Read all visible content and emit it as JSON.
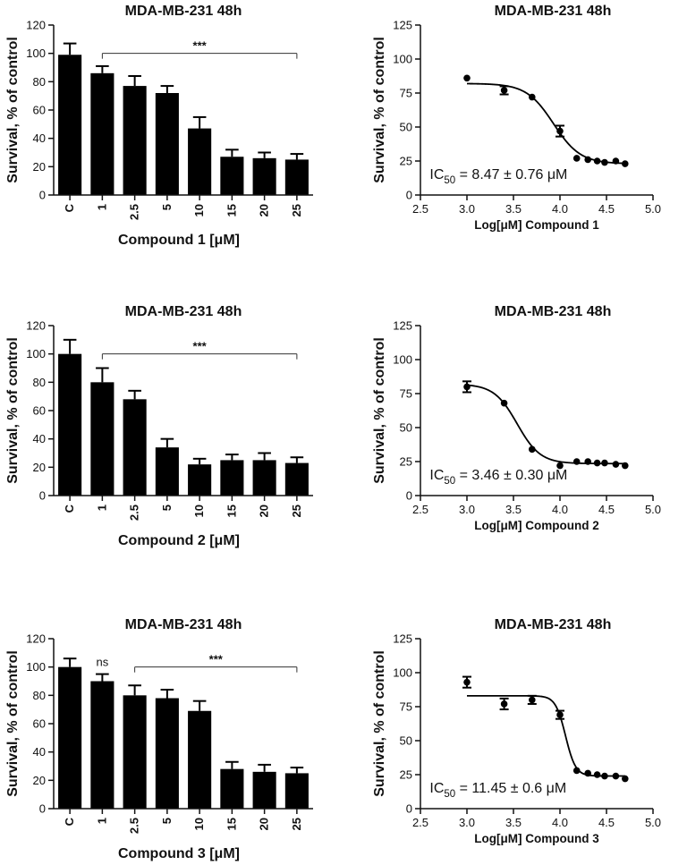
{
  "chart_data": [
    {
      "id": "bar1",
      "type": "bar",
      "title": "MDA-MB-231 48h",
      "ylabel": "Survival, % of control",
      "xlabel": "Compound 1 [μM]",
      "categories": [
        "C",
        "1",
        "2.5",
        "5",
        "10",
        "15",
        "20",
        "25"
      ],
      "values": [
        99,
        86,
        77,
        72,
        47,
        27,
        26,
        25
      ],
      "errors": [
        8,
        5,
        7,
        5,
        8,
        5,
        4,
        4
      ],
      "ylim": [
        0,
        120
      ],
      "yticks": [
        "0",
        "20",
        "40",
        "60",
        "80",
        "100",
        "120"
      ],
      "significance": [
        {
          "label": "***",
          "from": "1",
          "to": "25"
        }
      ]
    },
    {
      "id": "curve1",
      "type": "scatter",
      "title": "MDA-MB-231 48h",
      "ylabel": "Survival, % of control",
      "xlabel": "Log[μM] Compound 1",
      "x": [
        3.0,
        3.4,
        3.7,
        4.0,
        4.18,
        4.3,
        4.4,
        4.48,
        4.6,
        4.7
      ],
      "y": [
        86,
        77,
        72,
        47,
        27,
        26,
        25,
        24,
        25,
        23
      ],
      "errors": [
        0,
        3,
        0,
        4,
        0,
        0,
        0,
        0,
        0,
        0
      ],
      "fit": {
        "top": 82,
        "bottom": 23,
        "logIC50": 3.93,
        "hill": 3.0
      },
      "xlim": [
        2.5,
        5.0
      ],
      "ylim": [
        0,
        125
      ],
      "xticks": [
        "2.5",
        "3.0",
        "3.5",
        "4.0",
        "4.5",
        "5.0"
      ],
      "yticks": [
        "0",
        "25",
        "50",
        "75",
        "100",
        "125"
      ],
      "annotation": {
        "prefix": "IC",
        "sub": "50",
        "text": " = 8.47 ± 0.76 μM"
      }
    },
    {
      "id": "bar2",
      "type": "bar",
      "title": "MDA-MB-231 48h",
      "ylabel": "Survival, % of control",
      "xlabel": "Compound 2 [μM]",
      "categories": [
        "C",
        "1",
        "2.5",
        "5",
        "10",
        "15",
        "20",
        "25"
      ],
      "values": [
        100,
        80,
        68,
        34,
        22,
        25,
        25,
        23
      ],
      "errors": [
        10,
        10,
        6,
        6,
        4,
        4,
        5,
        4
      ],
      "ylim": [
        0,
        120
      ],
      "yticks": [
        "0",
        "20",
        "40",
        "60",
        "80",
        "100",
        "120"
      ],
      "significance": [
        {
          "label": "***",
          "from": "1",
          "to": "25"
        }
      ]
    },
    {
      "id": "curve2",
      "type": "scatter",
      "title": "MDA-MB-231 48h",
      "ylabel": "Survival, % of control",
      "xlabel": "Log[μM] Compound 2",
      "x": [
        3.0,
        3.4,
        3.7,
        4.0,
        4.18,
        4.3,
        4.4,
        4.48,
        4.6,
        4.7
      ],
      "y": [
        80,
        68,
        34,
        22,
        25,
        25,
        24,
        24,
        23,
        22
      ],
      "errors": [
        4,
        0,
        0,
        0,
        0,
        0,
        0,
        0,
        0,
        0
      ],
      "fit": {
        "top": 82,
        "bottom": 23.5,
        "logIC50": 3.54,
        "hill": 3.5
      },
      "xlim": [
        2.5,
        5.0
      ],
      "ylim": [
        0,
        125
      ],
      "xticks": [
        "2.5",
        "3.0",
        "3.5",
        "4.0",
        "4.5",
        "5.0"
      ],
      "yticks": [
        "0",
        "25",
        "50",
        "75",
        "100",
        "125"
      ],
      "annotation": {
        "prefix": "IC",
        "sub": "50",
        "text": " = 3.46 ± 0.30 μM"
      }
    },
    {
      "id": "bar3",
      "type": "bar",
      "title": "MDA-MB-231 48h",
      "ylabel": "Survival, % of control",
      "xlabel": "Compound 3 [μM]",
      "categories": [
        "C",
        "1",
        "2.5",
        "5",
        "10",
        "15",
        "20",
        "25"
      ],
      "values": [
        100,
        90,
        80,
        78,
        69,
        28,
        26,
        25
      ],
      "errors": [
        6,
        5,
        7,
        6,
        7,
        5,
        5,
        4
      ],
      "ylim": [
        0,
        120
      ],
      "yticks": [
        "0",
        "20",
        "40",
        "60",
        "80",
        "100",
        "120"
      ],
      "significance": [
        {
          "label": "***",
          "from": "2.5",
          "to": "25"
        }
      ],
      "ns_label": {
        "label": "ns",
        "at": "1"
      }
    },
    {
      "id": "curve3",
      "type": "scatter",
      "title": "MDA-MB-231 48h",
      "ylabel": "Survival, % of control",
      "xlabel": "Log[μM] Compound 3",
      "x": [
        3.0,
        3.4,
        3.7,
        4.0,
        4.18,
        4.3,
        4.4,
        4.48,
        4.6,
        4.7
      ],
      "y": [
        93,
        77,
        80,
        69,
        28,
        26,
        25,
        24,
        24,
        22
      ],
      "errors": [
        4,
        4,
        3,
        3,
        0,
        0,
        0,
        0,
        0,
        0
      ],
      "fit": {
        "top": 83,
        "bottom": 24,
        "logIC50": 4.06,
        "hill": 8.0
      },
      "xlim": [
        2.5,
        5.0
      ],
      "ylim": [
        0,
        125
      ],
      "xticks": [
        "2.5",
        "3.0",
        "3.5",
        "4.0",
        "4.5",
        "5.0"
      ],
      "yticks": [
        "0",
        "25",
        "50",
        "75",
        "100",
        "125"
      ],
      "annotation": {
        "prefix": "IC",
        "sub": "50",
        "text": " = 11.45 ± 0.6 μM"
      }
    }
  ]
}
